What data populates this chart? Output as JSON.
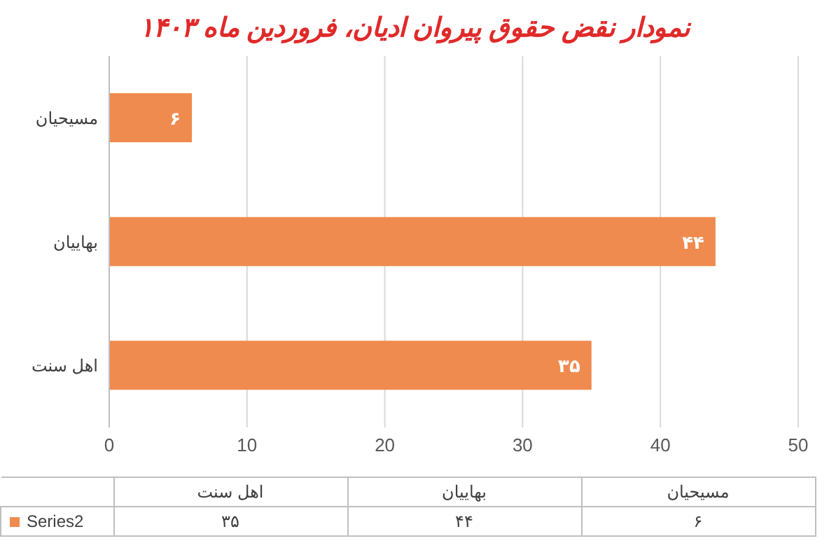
{
  "chart_data": {
    "type": "bar",
    "orientation": "horizontal",
    "title": "نمودار نقض حقوق پیروان ادیان، فروردین ماه ۱۴۰۳",
    "categories": [
      "مسیحیان",
      "بهاییان",
      "اهل سنت"
    ],
    "series": [
      {
        "name": "Series2",
        "color": "#ef8b4e",
        "values": [
          6,
          44,
          35
        ],
        "value_labels": [
          "۶",
          "۴۴",
          "۳۵"
        ]
      }
    ],
    "xlim": [
      0,
      50
    ],
    "xticks": [
      0,
      10,
      20,
      30,
      40,
      50
    ],
    "grid": "x",
    "legend": "bottom",
    "data_labels": false
  }
}
